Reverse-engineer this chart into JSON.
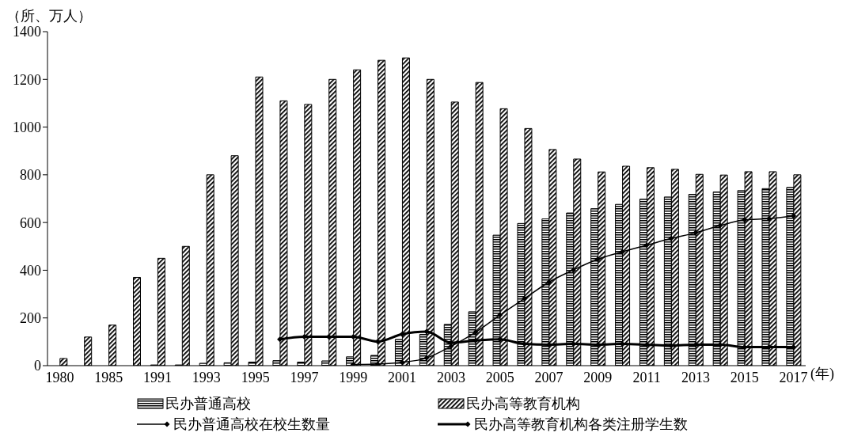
{
  "chart_data": {
    "type": "bar",
    "ylabel": "（所、万人）",
    "xlabel": "(年)",
    "categories": [
      "1980",
      null,
      "1985",
      null,
      "1991",
      null,
      "1993",
      null,
      "1995",
      null,
      "1997",
      null,
      "1999",
      null,
      "2001",
      null,
      "2003",
      null,
      "2005",
      null,
      "2007",
      null,
      "2009",
      null,
      "2011",
      null,
      "2013",
      null,
      "2015",
      null,
      "2017"
    ],
    "series": [
      {
        "name": "民办普通高校",
        "color": "#000000",
        "values": [
          null,
          null,
          null,
          null,
          3,
          3,
          10,
          12,
          15,
          21,
          15,
          20,
          37,
          43,
          110,
          131,
          173,
          226,
          547,
          596,
          615,
          640,
          658,
          676,
          698,
          707,
          718,
          728,
          734,
          742,
          747
        ]
      },
      {
        "name": "民办高等教育机构",
        "color": "#000000",
        "values": [
          30,
          120,
          170,
          370,
          450,
          500,
          800,
          880,
          1210,
          1110,
          1095,
          1200,
          1240,
          1280,
          1290,
          1200,
          1105,
          1187,
          1077,
          994,
          906,
          866,
          812,
          836,
          830,
          823,
          802,
          799,
          813,
          813,
          800
        ]
      },
      {
        "name": "民办普通高校在校生数量",
        "type": "line",
        "color": "#000000",
        "values": [
          null,
          null,
          null,
          null,
          null,
          null,
          null,
          null,
          null,
          null,
          null,
          null,
          5,
          7,
          14,
          32,
          81,
          140,
          212,
          281,
          350,
          401,
          446,
          477,
          505,
          533,
          557,
          587,
          611,
          616,
          628
        ]
      },
      {
        "name": "民办高等教育机构各类注册学生数",
        "type": "line",
        "color": "#000000",
        "values": [
          null,
          null,
          null,
          null,
          null,
          null,
          null,
          null,
          null,
          110,
          121,
          121,
          121,
          101,
          132,
          143,
          96,
          105,
          110,
          91,
          88,
          91,
          88,
          91,
          88,
          84,
          88,
          88,
          78,
          78,
          78
        ]
      }
    ],
    "ylim": [
      0,
      1400
    ],
    "yticks": [
      0,
      200,
      400,
      600,
      800,
      1000,
      1200,
      1400
    ],
    "legend": "bottom",
    "marker": "diamond",
    "line_style": "solid"
  }
}
